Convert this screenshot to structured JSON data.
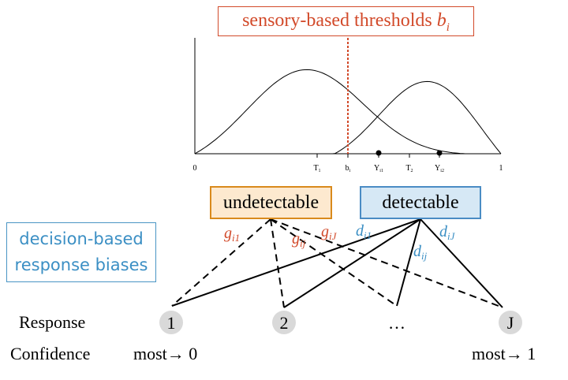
{
  "title": {
    "text": "sensory-based thresholds ",
    "symbol": "b",
    "subscript": "i"
  },
  "axis": {
    "start": "0",
    "end": "1",
    "ticks": [
      "T",
      "b",
      "Y",
      "T",
      "Y"
    ],
    "tick_subs": [
      "1",
      "i",
      "i1",
      "2",
      "i2"
    ]
  },
  "states": {
    "undetectable": "undetectable",
    "detectable": "detectable"
  },
  "biases_box": {
    "line1": "decision-based",
    "line2": "response biases"
  },
  "g_labels": [
    {
      "base": "g",
      "sub": "i1"
    },
    {
      "base": "g",
      "sub": "ij"
    },
    {
      "base": "g",
      "sub": "iJ"
    }
  ],
  "d_labels": [
    {
      "base": "d",
      "sub": "i1"
    },
    {
      "base": "d",
      "sub": "ij"
    },
    {
      "base": "d",
      "sub": "iJ"
    }
  ],
  "response": {
    "label": "Response",
    "options": [
      "1",
      "2",
      "…",
      "J"
    ]
  },
  "confidence": {
    "label": "Confidence",
    "low": "most→ 0",
    "high": "most→ 1"
  },
  "colors": {
    "threshold": "#d24a2a",
    "undetectable_border": "#d98a1c",
    "undetectable_fill": "#fde9cf",
    "detectable_border": "#4a8cc4",
    "detectable_fill": "#d6e8f5",
    "bias_text": "#3b8fc4",
    "node_fill": "#d9d9d9"
  }
}
